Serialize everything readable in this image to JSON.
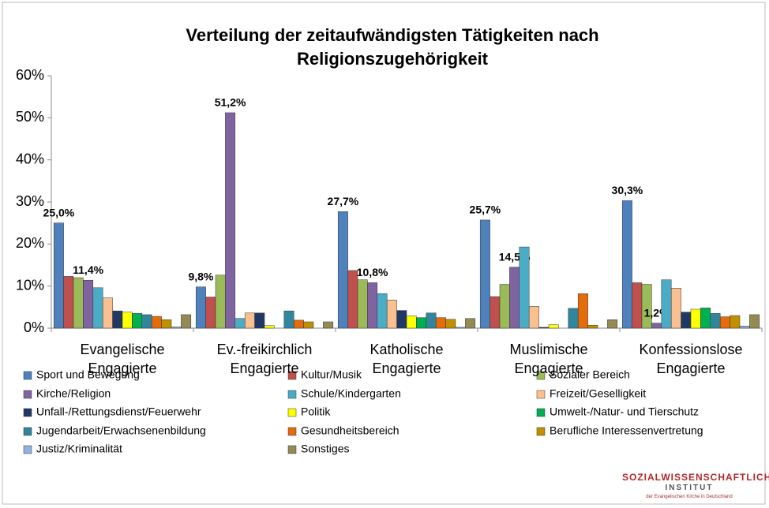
{
  "chart_data": {
    "type": "bar",
    "title": "Verteilung der zeitaufwändigsten Tätigkeiten nach Religionszugehörigkeit",
    "categories": [
      "Evangelische Engagierte",
      "Ev.-freikirchlich Engagierte",
      "Katholische Engagierte",
      "Muslimische Engagierte",
      "Konfessionslose Engagierte"
    ],
    "ylim": [
      0,
      60
    ],
    "yticks": [
      {
        "value": 0,
        "label": "0%"
      },
      {
        "value": 10,
        "label": "10%"
      },
      {
        "value": 20,
        "label": "20%"
      },
      {
        "value": 30,
        "label": "30%"
      },
      {
        "value": 40,
        "label": "40%"
      },
      {
        "value": 50,
        "label": "50%"
      },
      {
        "value": 60,
        "label": "60%"
      }
    ],
    "grid": false,
    "legend": "bottom",
    "series": [
      {
        "name": "Sport und Bewegung",
        "color": "#4f81bd",
        "values": [
          25.0,
          9.8,
          27.7,
          25.7,
          30.3
        ],
        "value_labels": [
          "25,0%",
          "9,8%",
          "27,7%",
          "25,7%",
          "30,3%"
        ]
      },
      {
        "name": "Kultur/Musik",
        "color": "#c0504d",
        "values": [
          12.3,
          7.4,
          13.7,
          7.5,
          10.8
        ]
      },
      {
        "name": "Sozialer Bereich",
        "color": "#9bbb59",
        "values": [
          12.0,
          12.6,
          11.5,
          10.4,
          10.4
        ]
      },
      {
        "name": "Kirche/Religion",
        "color": "#8064a2",
        "values": [
          11.4,
          51.2,
          10.8,
          14.5,
          1.2
        ],
        "value_labels": [
          "11,4%",
          "51,2%",
          "10,8%",
          "14,5%",
          "1,2%"
        ]
      },
      {
        "name": "Schule/Kindergarten",
        "color": "#4bacc6",
        "values": [
          9.6,
          2.3,
          8.2,
          19.3,
          11.5
        ]
      },
      {
        "name": "Freizeit/Geselligkeit",
        "color": "#fac090",
        "values": [
          7.2,
          3.6,
          6.7,
          5.2,
          9.5
        ]
      },
      {
        "name": "Unfall-/Rettungsdienst/Feuerwehr",
        "color": "#1f3864",
        "values": [
          4.1,
          3.6,
          4.2,
          0.2,
          3.8
        ]
      },
      {
        "name": "Politik",
        "color": "#ffff00",
        "values": [
          3.8,
          0.6,
          2.9,
          0.8,
          4.5
        ]
      },
      {
        "name": "Umwelt-/Natur- und Tierschutz",
        "color": "#00b050",
        "values": [
          3.5,
          0,
          2.5,
          0,
          4.8
        ]
      },
      {
        "name": "Jugendarbeit/Erwachsenenbildung",
        "color": "#31859c",
        "values": [
          3.2,
          4.1,
          3.6,
          4.7,
          3.5
        ]
      },
      {
        "name": "Gesundheitsbereich",
        "color": "#e46c0a",
        "values": [
          2.8,
          1.9,
          2.5,
          8.2,
          2.7
        ]
      },
      {
        "name": "Berufliche Interessenvertretung",
        "color": "#c09000",
        "values": [
          2.0,
          1.5,
          2.1,
          0.7,
          3.0
        ]
      },
      {
        "name": "Justiz/Kriminalität",
        "color": "#8db3e2",
        "values": [
          0.3,
          0,
          0.2,
          0,
          0.5
        ]
      },
      {
        "name": "Sonstiges",
        "color": "#948a54",
        "values": [
          3.2,
          1.5,
          2.3,
          2.0,
          3.2
        ]
      }
    ]
  },
  "logo": {
    "line1": "SOZIALWISSENSCHAFTLICHES",
    "line2": "INSTITUT",
    "line3": "der Evangelischen Kirche in Deutschland"
  }
}
